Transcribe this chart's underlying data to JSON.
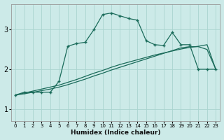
{
  "background_color": "#cceae8",
  "grid_color": "#aad4d0",
  "line_color": "#1a6b5a",
  "xlabel": "Humidex (Indice chaleur)",
  "xlim": [
    -0.5,
    23.5
  ],
  "ylim": [
    0.7,
    3.65
  ],
  "yticks": [
    1,
    2,
    3
  ],
  "xticks": [
    0,
    1,
    2,
    3,
    4,
    5,
    6,
    7,
    8,
    9,
    10,
    11,
    12,
    13,
    14,
    15,
    16,
    17,
    18,
    19,
    20,
    21,
    22,
    23
  ],
  "line1_x": [
    0,
    1,
    2,
    3,
    4,
    5,
    6,
    7,
    8,
    9,
    10,
    11,
    12,
    13,
    14,
    15,
    16,
    17,
    18,
    19,
    20,
    21,
    22,
    23
  ],
  "line1_y": [
    1.35,
    1.4,
    1.45,
    1.5,
    1.55,
    1.6,
    1.67,
    1.74,
    1.82,
    1.9,
    1.97,
    2.05,
    2.12,
    2.18,
    2.24,
    2.3,
    2.36,
    2.41,
    2.46,
    2.51,
    2.55,
    2.58,
    2.62,
    2.0
  ],
  "line2_x": [
    0,
    1,
    2,
    3,
    4,
    5,
    6,
    7,
    8,
    9,
    10,
    11,
    12,
    13,
    14,
    15,
    16,
    17,
    18,
    19,
    20,
    21,
    22,
    23
  ],
  "line2_y": [
    1.35,
    1.38,
    1.42,
    1.46,
    1.5,
    1.55,
    1.61,
    1.68,
    1.75,
    1.83,
    1.9,
    1.98,
    2.05,
    2.12,
    2.19,
    2.26,
    2.33,
    2.4,
    2.47,
    2.54,
    2.57,
    2.57,
    2.5,
    2.0
  ],
  "line3_x": [
    0,
    1,
    2,
    3,
    4,
    5,
    6,
    7,
    8,
    9,
    10,
    11,
    12,
    13,
    14,
    15,
    16,
    17,
    18,
    19,
    20,
    21,
    22,
    23
  ],
  "line3_y": [
    1.35,
    1.42,
    1.42,
    1.42,
    1.42,
    1.7,
    2.58,
    2.65,
    2.68,
    3.0,
    3.38,
    3.42,
    3.35,
    3.28,
    3.24,
    2.72,
    2.62,
    2.6,
    2.93,
    2.62,
    2.62,
    2.0,
    2.0,
    2.0
  ]
}
